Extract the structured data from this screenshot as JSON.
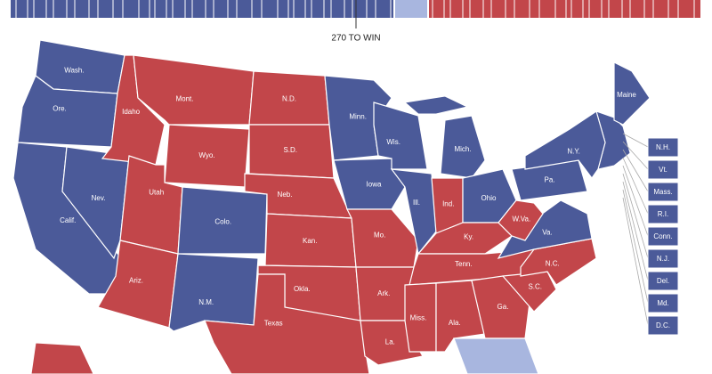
{
  "header": {
    "marker": "270 TO WIN"
  },
  "colors": {
    "dem": "#4b5a99",
    "rep": "#c2464a",
    "undecided": "#a8b6df"
  },
  "states": [
    {
      "label": "Wash.",
      "party": "dem"
    },
    {
      "label": "Ore.",
      "party": "dem"
    },
    {
      "label": "Calif.",
      "party": "dem"
    },
    {
      "label": "Nev.",
      "party": "dem"
    },
    {
      "label": "Idaho",
      "party": "rep"
    },
    {
      "label": "Mont.",
      "party": "rep"
    },
    {
      "label": "Wyo.",
      "party": "rep"
    },
    {
      "label": "Utah",
      "party": "rep"
    },
    {
      "label": "Colo.",
      "party": "dem"
    },
    {
      "label": "Ariz.",
      "party": "rep"
    },
    {
      "label": "N.M.",
      "party": "dem"
    },
    {
      "label": "N.D.",
      "party": "rep"
    },
    {
      "label": "S.D.",
      "party": "rep"
    },
    {
      "label": "Neb.",
      "party": "rep"
    },
    {
      "label": "Kan.",
      "party": "rep"
    },
    {
      "label": "Okla.",
      "party": "rep"
    },
    {
      "label": "Texas",
      "party": "rep"
    },
    {
      "label": "Minn.",
      "party": "dem"
    },
    {
      "label": "Iowa",
      "party": "dem"
    },
    {
      "label": "Mo.",
      "party": "rep"
    },
    {
      "label": "Ark.",
      "party": "rep"
    },
    {
      "label": "La.",
      "party": "rep"
    },
    {
      "label": "Wis.",
      "party": "dem"
    },
    {
      "label": "Ill.",
      "party": "dem"
    },
    {
      "label": "Mich.",
      "party": "dem"
    },
    {
      "label": "Ind.",
      "party": "rep"
    },
    {
      "label": "Ohio",
      "party": "dem"
    },
    {
      "label": "Ky.",
      "party": "rep"
    },
    {
      "label": "Tenn.",
      "party": "rep"
    },
    {
      "label": "Miss.",
      "party": "rep"
    },
    {
      "label": "Ala.",
      "party": "rep"
    },
    {
      "label": "Ga.",
      "party": "rep"
    },
    {
      "label": null,
      "party": "undecided"
    },
    {
      "label": "S.C.",
      "party": "rep"
    },
    {
      "label": "N.C.",
      "party": "rep"
    },
    {
      "label": "Va.",
      "party": "dem"
    },
    {
      "label": "W.Va.",
      "party": "rep"
    },
    {
      "label": "Pa.",
      "party": "dem"
    },
    {
      "label": "N.Y.",
      "party": "dem"
    },
    {
      "label": "Maine",
      "party": "dem"
    }
  ],
  "small_states": [
    {
      "label": "N.H.",
      "party": "dem"
    },
    {
      "label": "Vt.",
      "party": "dem"
    },
    {
      "label": "Mass.",
      "party": "dem"
    },
    {
      "label": "R.I.",
      "party": "dem"
    },
    {
      "label": "Conn.",
      "party": "dem"
    },
    {
      "label": "N.J.",
      "party": "dem"
    },
    {
      "label": "Del.",
      "party": "dem"
    },
    {
      "label": "Md.",
      "party": "dem"
    },
    {
      "label": "D.C.",
      "party": "dem"
    }
  ]
}
